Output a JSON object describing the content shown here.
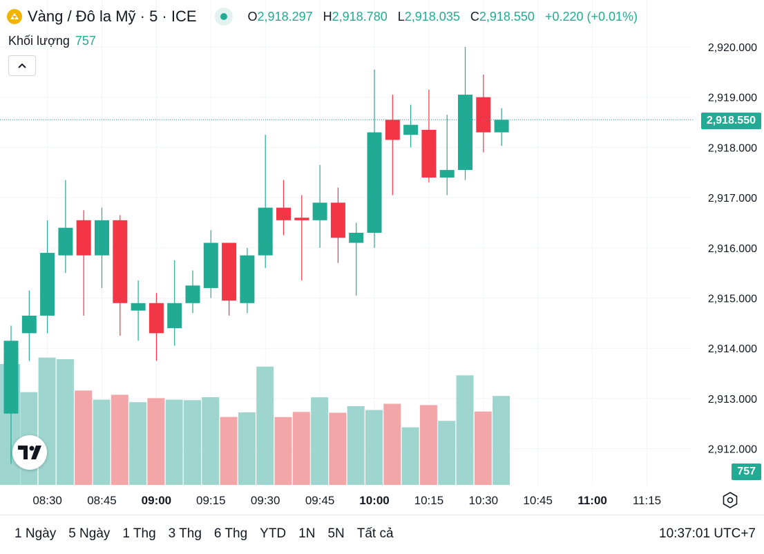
{
  "header": {
    "symbol": "Vàng / Đô la Mỹ · 5 · ICE",
    "icon": "gold-bars-icon",
    "ohlc": {
      "o_label": "O",
      "o": "2,918.297",
      "h_label": "H",
      "h": "2,918.780",
      "l_label": "L",
      "l": "2,918.035",
      "c_label": "C",
      "c": "2,918.550",
      "change": "+0.220 (+0.01%)"
    }
  },
  "volume_legend": {
    "label": "Khối lượng",
    "value": "757"
  },
  "price_axis_labels": [
    "2,920.000",
    "2,919.000",
    "2,918.000",
    "2,917.000",
    "2,916.000",
    "2,915.000",
    "2,914.000",
    "2,913.000",
    "2,912.000"
  ],
  "last_price_label": "2,918.550",
  "last_volume_label": "757",
  "time_axis_labels": [
    {
      "t": "08:30",
      "bold": false
    },
    {
      "t": "08:45",
      "bold": false
    },
    {
      "t": "09:00",
      "bold": true
    },
    {
      "t": "09:15",
      "bold": false
    },
    {
      "t": "09:30",
      "bold": false
    },
    {
      "t": "09:45",
      "bold": false
    },
    {
      "t": "10:00",
      "bold": true
    },
    {
      "t": "10:15",
      "bold": false
    },
    {
      "t": "10:30",
      "bold": false
    },
    {
      "t": "10:45",
      "bold": false
    },
    {
      "t": "11:00",
      "bold": true
    },
    {
      "t": "11:15",
      "bold": false
    }
  ],
  "date_ranges": [
    "1 Ngày",
    "5 Ngày",
    "1 Thg",
    "3 Thg",
    "6 Thg",
    "YTD",
    "1N",
    "5N",
    "Tất cả"
  ],
  "clock": "10:37:01 UTC+7",
  "colors": {
    "up": "#22ab94",
    "down": "#f23645",
    "vol_up": "#9fd5cf",
    "vol_down": "#f2a6a8",
    "grid": "#f0f3fa",
    "text": "#131722"
  },
  "chart_data": {
    "type": "candlestick",
    "interval_minutes": 5,
    "first_bar_time": "08:20",
    "y_axis_ticks": [
      2912,
      2913,
      2914,
      2915,
      2916,
      2917,
      2918,
      2919,
      2920
    ],
    "last_price": 2918.55,
    "grid": true,
    "candles": [
      {
        "t": "08:20",
        "o": 2912.7,
        "h": 2914.45,
        "l": 2911.7,
        "c": 2914.15
      },
      {
        "t": "08:25",
        "o": 2914.3,
        "h": 2915.15,
        "l": 2913.75,
        "c": 2914.65
      },
      {
        "t": "08:30",
        "o": 2914.65,
        "h": 2916.55,
        "l": 2914.3,
        "c": 2915.9
      },
      {
        "t": "08:35",
        "o": 2915.85,
        "h": 2917.35,
        "l": 2915.5,
        "c": 2916.4
      },
      {
        "t": "08:40",
        "o": 2916.55,
        "h": 2916.75,
        "l": 2914.65,
        "c": 2915.85
      },
      {
        "t": "08:45",
        "o": 2915.85,
        "h": 2916.8,
        "l": 2915.2,
        "c": 2916.55
      },
      {
        "t": "08:50",
        "o": 2916.55,
        "h": 2916.65,
        "l": 2914.25,
        "c": 2914.9
      },
      {
        "t": "08:55",
        "o": 2914.75,
        "h": 2915.35,
        "l": 2914.15,
        "c": 2914.9
      },
      {
        "t": "09:00",
        "o": 2914.9,
        "h": 2915.1,
        "l": 2913.75,
        "c": 2914.3
      },
      {
        "t": "09:05",
        "o": 2914.4,
        "h": 2915.75,
        "l": 2914.05,
        "c": 2914.9
      },
      {
        "t": "09:10",
        "o": 2914.9,
        "h": 2915.55,
        "l": 2914.7,
        "c": 2915.25
      },
      {
        "t": "09:15",
        "o": 2915.2,
        "h": 2916.35,
        "l": 2915.0,
        "c": 2916.1
      },
      {
        "t": "09:20",
        "o": 2916.1,
        "h": 2916.1,
        "l": 2914.65,
        "c": 2914.95
      },
      {
        "t": "09:25",
        "o": 2914.9,
        "h": 2916.0,
        "l": 2914.7,
        "c": 2915.85
      },
      {
        "t": "09:30",
        "o": 2915.85,
        "h": 2918.25,
        "l": 2915.6,
        "c": 2916.8
      },
      {
        "t": "09:35",
        "o": 2916.8,
        "h": 2917.35,
        "l": 2916.25,
        "c": 2916.55
      },
      {
        "t": "09:40",
        "o": 2916.6,
        "h": 2917.05,
        "l": 2915.35,
        "c": 2916.55
      },
      {
        "t": "09:45",
        "o": 2916.55,
        "h": 2917.65,
        "l": 2916.0,
        "c": 2916.9
      },
      {
        "t": "09:50",
        "o": 2916.9,
        "h": 2917.2,
        "l": 2915.7,
        "c": 2916.2
      },
      {
        "t": "09:55",
        "o": 2916.1,
        "h": 2916.5,
        "l": 2915.05,
        "c": 2916.3
      },
      {
        "t": "10:00",
        "o": 2916.3,
        "h": 2919.55,
        "l": 2916.0,
        "c": 2918.3
      },
      {
        "t": "10:05",
        "o": 2918.55,
        "h": 2919.05,
        "l": 2917.05,
        "c": 2918.15
      },
      {
        "t": "10:10",
        "o": 2918.25,
        "h": 2918.85,
        "l": 2918.0,
        "c": 2918.45
      },
      {
        "t": "10:15",
        "o": 2918.35,
        "h": 2919.15,
        "l": 2917.3,
        "c": 2917.4
      },
      {
        "t": "10:20",
        "o": 2917.4,
        "h": 2918.65,
        "l": 2917.05,
        "c": 2917.55
      },
      {
        "t": "10:25",
        "o": 2917.55,
        "h": 2920.0,
        "l": 2917.35,
        "c": 2919.05
      },
      {
        "t": "10:30",
        "o": 2919.0,
        "h": 2919.45,
        "l": 2917.9,
        "c": 2918.3
      },
      {
        "t": "10:35",
        "o": 2918.3,
        "h": 2918.78,
        "l": 2918.03,
        "c": 2918.55
      }
    ],
    "volume": [
      1028,
      789,
      1083,
      1069,
      803,
      725,
      767,
      704,
      738,
      725,
      721,
      746,
      578,
      617,
      1006,
      577,
      621,
      745,
      614,
      670,
      637,
      690,
      490,
      679,
      545,
      932,
      624,
      757
    ]
  }
}
